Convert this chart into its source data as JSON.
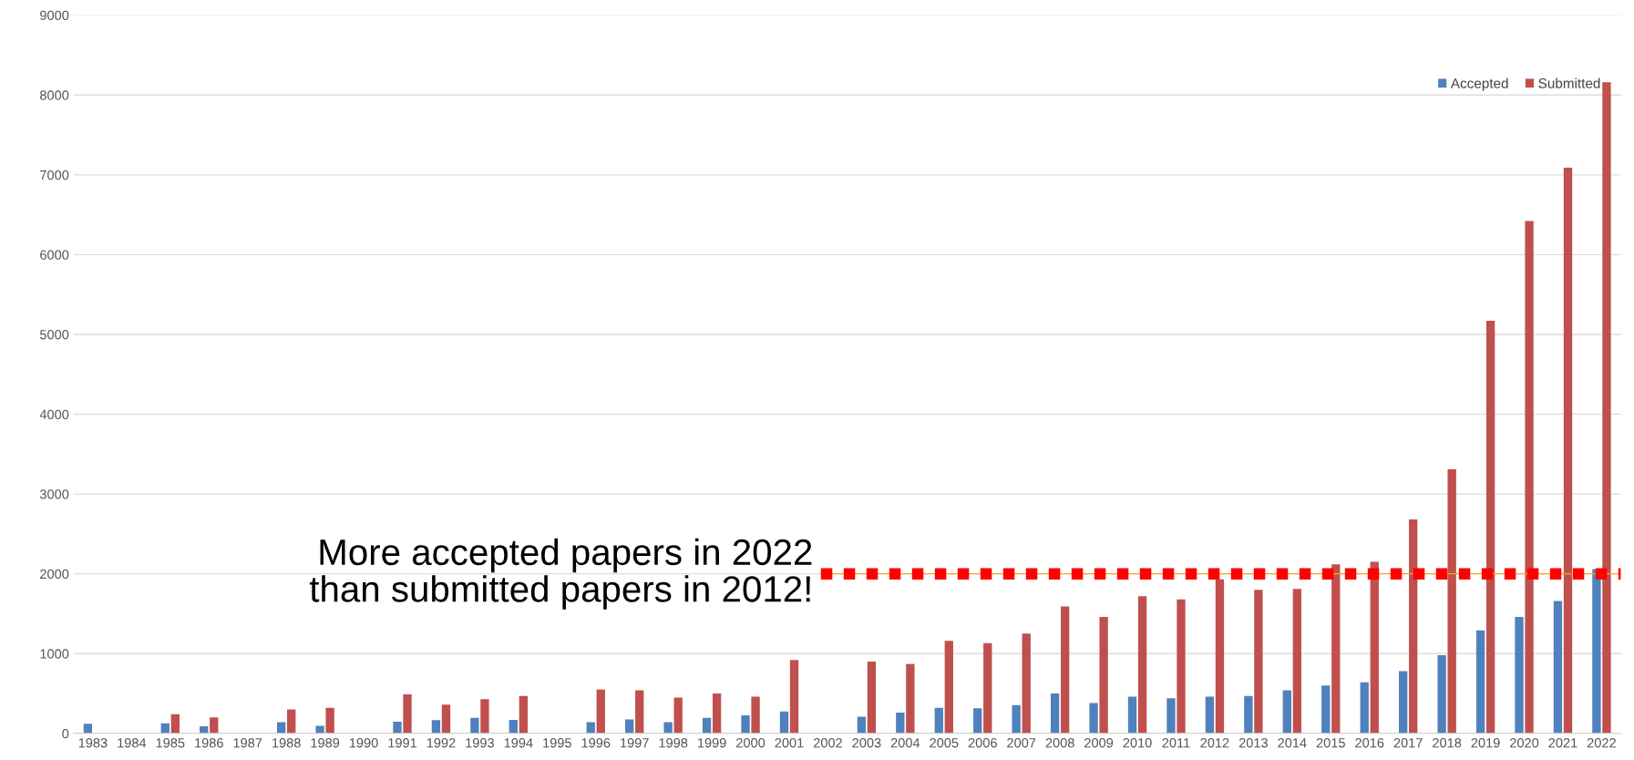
{
  "chart_data": {
    "type": "bar",
    "categories": [
      "1983",
      "1984",
      "1985",
      "1986",
      "1987",
      "1988",
      "1989",
      "1990",
      "1991",
      "1992",
      "1993",
      "1994",
      "1995",
      "1996",
      "1997",
      "1998",
      "1999",
      "2000",
      "2001",
      "2002",
      "2003",
      "2004",
      "2005",
      "2006",
      "2007",
      "2008",
      "2009",
      "2010",
      "2011",
      "2012",
      "2013",
      "2014",
      "2015",
      "2016",
      "2017",
      "2018",
      "2019",
      "2020",
      "2021",
      "2022"
    ],
    "series": [
      {
        "name": "Accepted",
        "color": "#4f81bd",
        "values": [
          120,
          null,
          125,
          90,
          null,
          140,
          95,
          null,
          145,
          165,
          195,
          170,
          null,
          140,
          175,
          140,
          195,
          225,
          275,
          null,
          210,
          260,
          320,
          315,
          355,
          500,
          380,
          460,
          440,
          460,
          470,
          540,
          600,
          640,
          780,
          980,
          1290,
          1460,
          1660,
          2060
        ]
      },
      {
        "name": "Submitted",
        "color": "#c0504d",
        "values": [
          null,
          null,
          240,
          200,
          null,
          300,
          320,
          null,
          490,
          360,
          430,
          470,
          null,
          550,
          540,
          450,
          500,
          460,
          920,
          null,
          900,
          870,
          1160,
          1130,
          1250,
          1590,
          1460,
          1720,
          1680,
          1930,
          1800,
          1810,
          2120,
          2150,
          2680,
          3310,
          5170,
          6420,
          7090,
          8160
        ]
      }
    ],
    "ylim": [
      0,
      9000
    ],
    "yticks": [
      0,
      1000,
      2000,
      3000,
      4000,
      5000,
      6000,
      7000,
      8000,
      9000
    ],
    "grid": "y",
    "legend": "top right",
    "ref_lines": [
      {
        "axis": "y",
        "value": 2000,
        "color": "#ff0000",
        "line_style": "dotted"
      }
    ],
    "annotations": [
      "More accepted papers in 2022\nthan submitted papers in 2012!"
    ]
  }
}
